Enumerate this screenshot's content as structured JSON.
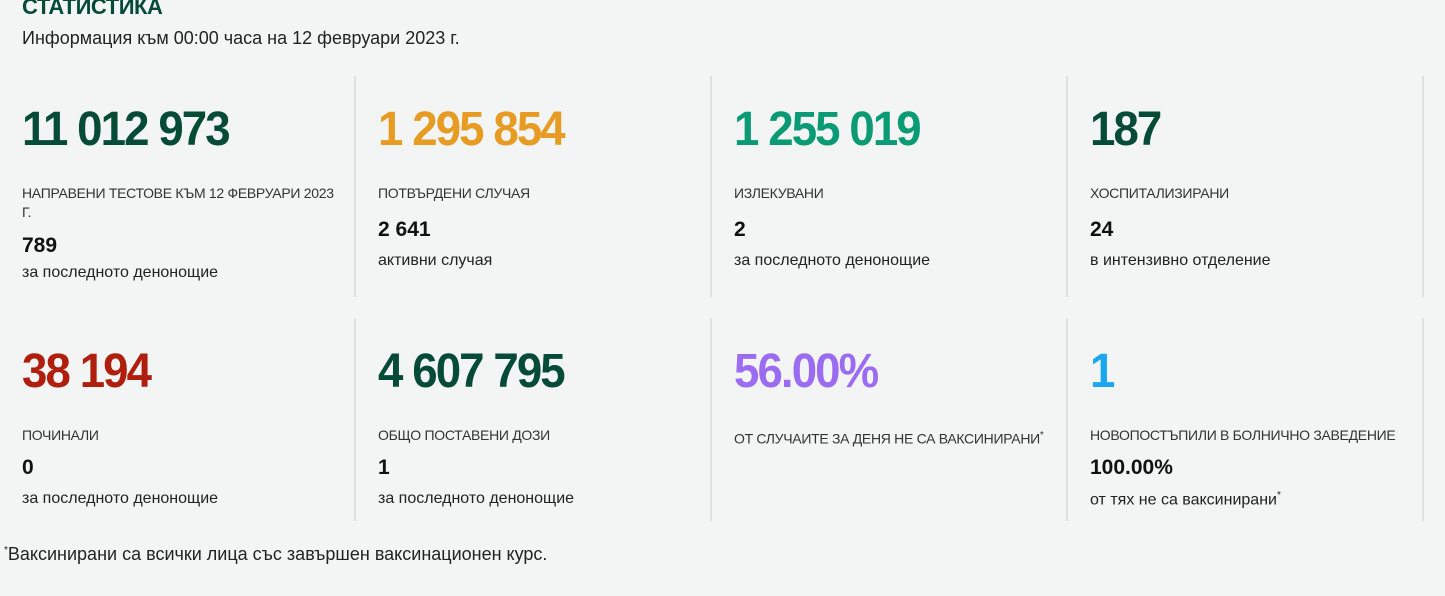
{
  "header": {
    "title": "СТАТИСТИКА",
    "subtitle": "Информация към 00:00 часа на 12 февруари 2023 г."
  },
  "colors": {
    "dark_green": "#064b36",
    "orange": "#e79b22",
    "teal": "#0a9a74",
    "red": "#b01e0e",
    "purple": "#9b6cf2",
    "blue": "#1aa7ef"
  },
  "stats": [
    {
      "value": "11 012 973",
      "label": "Направени тестове към 12 февруари 2023 г.",
      "sub_value": "789",
      "sub_label": "за последното денонощие"
    },
    {
      "value": "1 295 854",
      "label": "Потвърдени случая",
      "sub_value": "2 641",
      "sub_label": "активни случая"
    },
    {
      "value": "1 255 019",
      "label": "Излекувани",
      "sub_value": "2",
      "sub_label": "за последното денонощие"
    },
    {
      "value": "187",
      "label": "Хоспитализирани",
      "sub_value": "24",
      "sub_label": "в интензивно отделение"
    },
    {
      "value": "38 194",
      "label": "Починали",
      "sub_value": "0",
      "sub_label": "за последното денонощие"
    },
    {
      "value": "4 607 795",
      "label": "Общо поставени дози",
      "sub_value": "1",
      "sub_label": "за последното денонощие"
    },
    {
      "value": "56.00%",
      "label": "От случаите за деня не са ваксинирани",
      "footnote_mark": "*"
    },
    {
      "value": "1",
      "label": "Новопостъпили в болнично заведение",
      "sub_value": "100.00%",
      "sub_label": "от тях не са ваксинирани",
      "footnote_mark": "*"
    }
  ],
  "footnote": {
    "mark": "*",
    "text": "Ваксинирани са всички лица със завършен ваксинационен курс."
  }
}
